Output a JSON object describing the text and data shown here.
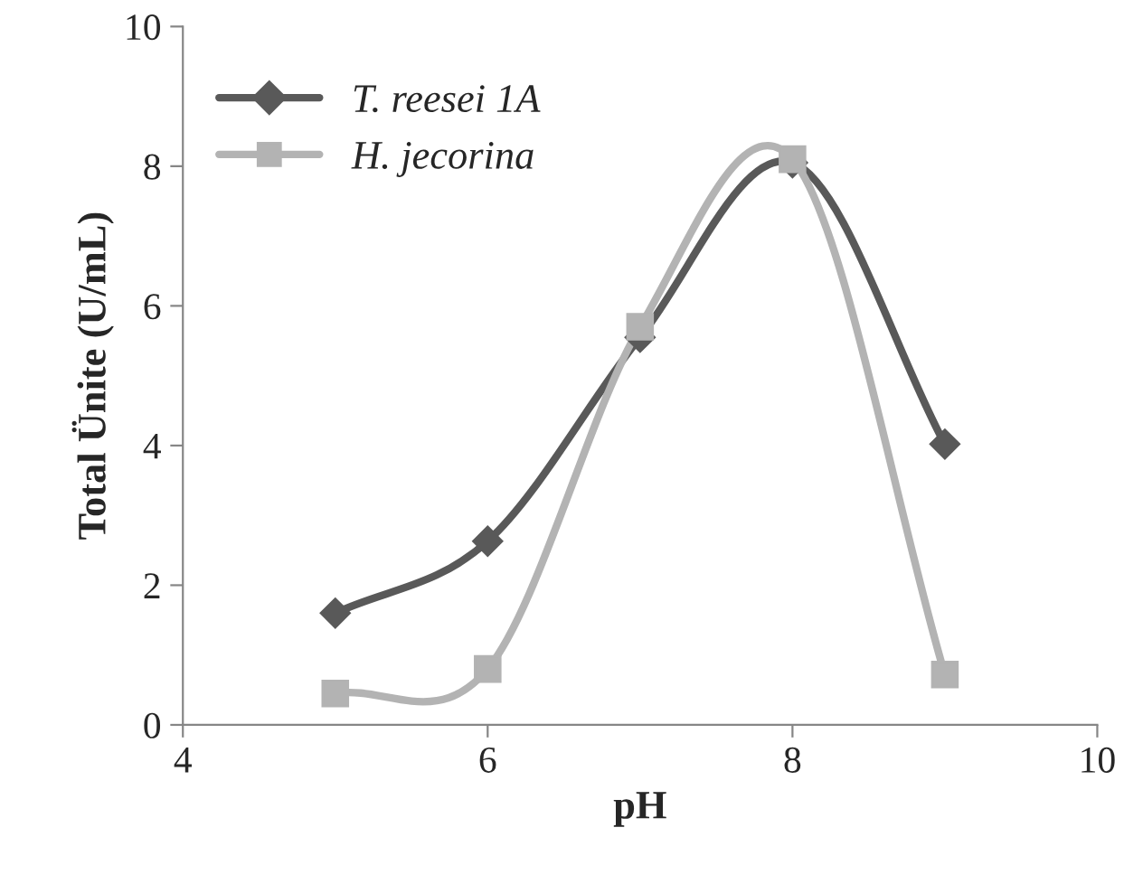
{
  "chart_data": {
    "type": "line",
    "xlabel": "pH",
    "ylabel": "Total Ünite (U/mL)",
    "x": [
      5,
      6,
      7,
      8,
      9
    ],
    "series": [
      {
        "name": "T. reesei 1A",
        "color": "#595959",
        "marker": "diamond",
        "values": [
          1.6,
          2.63,
          5.55,
          8.05,
          4.02
        ]
      },
      {
        "name": "H. jecorina",
        "color": "#b3b3b3",
        "marker": "square",
        "values": [
          0.45,
          0.8,
          5.7,
          8.1,
          0.72
        ]
      }
    ],
    "xlim": [
      4,
      10
    ],
    "xticks": [
      4,
      6,
      8,
      10
    ],
    "ylim": [
      0,
      10
    ],
    "yticks": [
      0,
      2,
      4,
      6,
      8,
      10
    ],
    "grid": false,
    "legend": "top left",
    "line_style": "solid"
  }
}
